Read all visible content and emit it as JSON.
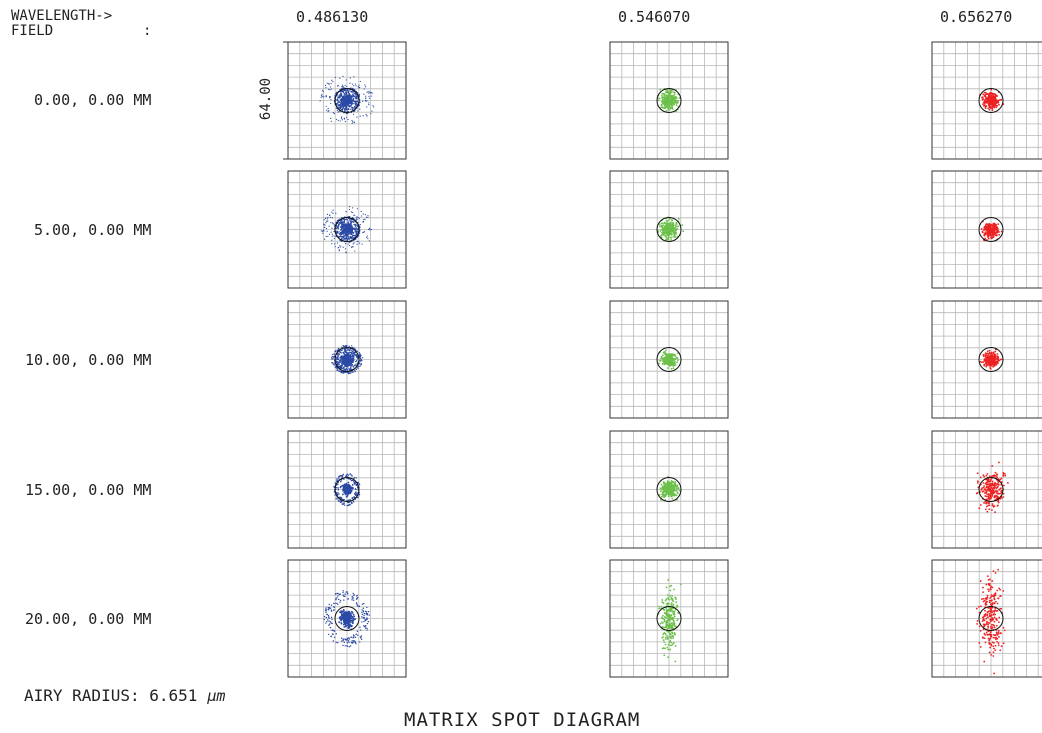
{
  "header": {
    "wavelength_label": "WAVELENGTH->",
    "field_label": "FIELD",
    "field_colon": ":"
  },
  "wavelengths": [
    "0.486130",
    "0.546070",
    "0.656270"
  ],
  "fields": [
    "0.00, 0.00 MM",
    "5.00, 0.00 MM",
    "10.00, 0.00 MM",
    "15.00, 0.00 MM",
    "20.00, 0.00 MM"
  ],
  "scale_bar": {
    "label": "64.00"
  },
  "airy": {
    "label": "AIRY RADIUS: 6.651",
    "unit": "µm",
    "radius_um": 6.651
  },
  "title": "MATRIX SPOT DIAGRAM",
  "colors": {
    "blue": "#2b4aa6",
    "green": "#6cc04a",
    "red": "#ee2222",
    "grid": "#b8b8b8",
    "frame": "#333333"
  }
}
